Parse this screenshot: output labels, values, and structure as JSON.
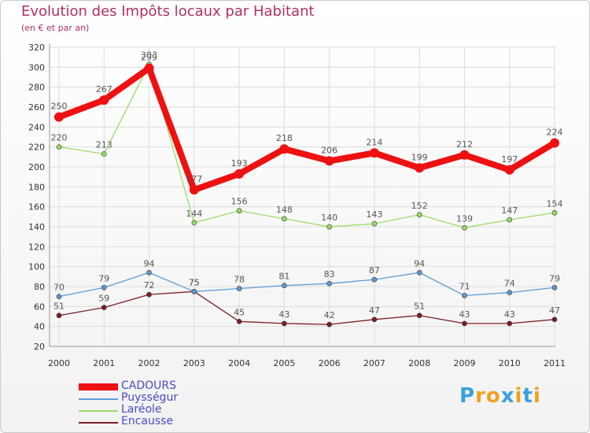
{
  "chart_data": {
    "type": "line",
    "title": "Evolution des Impôts locaux par Habitant",
    "subtitle": "(en € et par an)",
    "categories": [
      "2000",
      "2001",
      "2002",
      "2003",
      "2004",
      "2005",
      "2006",
      "2007",
      "2008",
      "2009",
      "2010",
      "2011"
    ],
    "ylim": [
      20,
      320
    ],
    "yticks": [
      20,
      40,
      60,
      80,
      100,
      120,
      140,
      160,
      180,
      200,
      220,
      240,
      260,
      280,
      300,
      320
    ],
    "grid": true,
    "legend_position": "bottom-left",
    "series": [
      {
        "name": "Encausse",
        "color": "#7a1e24",
        "values": [
          51,
          59,
          72,
          75,
          45,
          43,
          42,
          47,
          51,
          43,
          43,
          47
        ]
      },
      {
        "name": "Laréole",
        "color": "#99dd66",
        "values": [
          220,
          213,
          303,
          144,
          156,
          148,
          140,
          143,
          152,
          139,
          147,
          154
        ]
      },
      {
        "name": "Puysségur",
        "color": "#5b9bd5",
        "values": [
          70,
          79,
          94,
          75,
          78,
          81,
          83,
          87,
          94,
          71,
          74,
          79
        ]
      },
      {
        "name": "CADOURS",
        "color": "#ee1111",
        "values": [
          250,
          267,
          299,
          177,
          193,
          218,
          206,
          214,
          199,
          212,
          197,
          224
        ]
      }
    ],
    "legend_order": [
      "CADOURS",
      "Puysségur",
      "Laréole",
      "Encausse"
    ]
  },
  "logo": {
    "letters": [
      "P",
      "r",
      "o",
      "x",
      "i",
      "t",
      "i"
    ],
    "colors": [
      "#3aa0e0",
      "#f0a020",
      "#f0a020",
      "#3aa0e0",
      "#f0a020",
      "#3aa0e0",
      "#f0a020"
    ]
  }
}
